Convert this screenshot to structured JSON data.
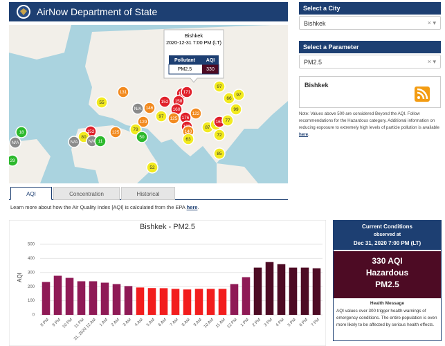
{
  "header": {
    "title": "AirNow Department of State"
  },
  "map": {
    "markers": [
      {
        "label": "97",
        "color": "#f2ea1f"
      },
      {
        "label": "66",
        "color": "#f2ea1f"
      },
      {
        "label": "97",
        "color": "#f2ea1f"
      },
      {
        "label": "99",
        "color": "#f2ea1f"
      },
      {
        "label": "55",
        "color": "#f2ea1f"
      },
      {
        "label": "131",
        "color": "#f28a1f"
      },
      {
        "label": "152",
        "color": "#e0202a"
      },
      {
        "label": "143",
        "color": "#e0202a"
      },
      {
        "label": "171",
        "color": "#e0202a"
      },
      {
        "label": "158",
        "color": "#e0202a"
      },
      {
        "label": "160",
        "color": "#e0202a"
      },
      {
        "label": "N/A",
        "color": "#8a8a8a"
      },
      {
        "label": "146",
        "color": "#f28a1f"
      },
      {
        "label": "97",
        "color": "#f2ea1f"
      },
      {
        "label": "125",
        "color": "#f28a1f"
      },
      {
        "label": "129",
        "color": "#f28a1f"
      },
      {
        "label": "176",
        "color": "#e0202a"
      },
      {
        "label": "122",
        "color": "#f28a1f"
      },
      {
        "label": "157",
        "color": "#e0202a"
      },
      {
        "label": "140",
        "color": "#f28a1f"
      },
      {
        "label": "87",
        "color": "#f2ea1f"
      },
      {
        "label": "76",
        "color": "#f2ea1f"
      },
      {
        "label": "167",
        "color": "#e0202a"
      },
      {
        "label": "77",
        "color": "#f2ea1f"
      },
      {
        "label": "72",
        "color": "#f2ea1f"
      },
      {
        "label": "63",
        "color": "#f2ea1f"
      },
      {
        "label": "85",
        "color": "#f2ea1f"
      },
      {
        "label": "52",
        "color": "#f2ea1f"
      },
      {
        "label": "79",
        "color": "#f2ea1f"
      },
      {
        "label": "50",
        "color": "#2db92d"
      },
      {
        "label": "125",
        "color": "#f28a1f"
      },
      {
        "label": "152",
        "color": "#e0202a"
      },
      {
        "label": "80",
        "color": "#f2ea1f"
      },
      {
        "label": "N/A",
        "color": "#8a8a8a"
      },
      {
        "label": "N/A",
        "color": "#8a8a8a"
      },
      {
        "label": "11",
        "color": "#2db92d"
      },
      {
        "label": "18",
        "color": "#2db92d"
      },
      {
        "label": "N/A",
        "color": "#8a8a8a"
      },
      {
        "label": "29",
        "color": "#2db92d"
      }
    ],
    "popup": {
      "city": "Bishkek",
      "time": "2020-12-31 7:00 PM (LT)",
      "head": [
        "Pollutant",
        "AQI"
      ],
      "row": [
        "PM2.5",
        "330"
      ]
    }
  },
  "sidebar": {
    "city_label": "Select a City",
    "city": "Bishkek",
    "parameter_label": "Select a Parameter",
    "parameter": "PM2.5",
    "feed_title": "Bishkek",
    "note": "Note: Values above 500 are considered Beyond the AQI. Follow recommendations for the Hazardous category. Additional information on reducing exposure to extremely high levels of particle pollution is available ",
    "note_link": "here",
    "note_end": "."
  },
  "tabs": [
    "AQI",
    "Concentration",
    "Historical"
  ],
  "learn_more": {
    "text": "Learn more about how the Air Quality Index [AQI] is calculated from the EPA ",
    "link": "here",
    "end": "."
  },
  "chart_data": {
    "type": "bar",
    "title": "Bishkek - PM2.5",
    "y_label": "AQI",
    "categories": [
      "8 PM",
      "9 PM",
      "10 PM",
      "11 PM",
      "31, 2020 12 AM",
      "1 AM",
      "2 AM",
      "3 AM",
      "4 AM",
      "5 AM",
      "6 AM",
      "7 AM",
      "8 AM",
      "9 AM",
      "10 AM",
      "11 AM",
      "12 PM",
      "1 PM",
      "2 PM",
      "3 PM",
      "4 PM",
      "5 PM",
      "6 PM",
      "7 PM"
    ],
    "values": [
      233,
      277,
      262,
      238,
      238,
      228,
      218,
      204,
      194,
      190,
      189,
      184,
      180,
      184,
      184,
      184,
      218,
      267,
      335,
      374,
      359,
      335,
      335,
      330
    ],
    "colors": [
      "#8f1a56",
      "#8f1a56",
      "#8f1a56",
      "#8f1a56",
      "#8f1a56",
      "#8f1a56",
      "#8f1a56",
      "#8f1a56",
      "#f21d1d",
      "#f21d1d",
      "#f21d1d",
      "#f21d1d",
      "#f21d1d",
      "#f21d1d",
      "#f21d1d",
      "#f21d1d",
      "#8f1a56",
      "#8f1a56",
      "#4d0b24",
      "#4d0b24",
      "#4d0b24",
      "#4d0b24",
      "#4d0b24",
      "#4d0b24"
    ],
    "ylim": [
      0,
      500
    ],
    "yticks": [
      0,
      100,
      200,
      300,
      400,
      500
    ],
    "grid": true
  },
  "current": {
    "title": "Current Conditions",
    "observed": "observed at",
    "time": "Dec 31, 2020 7:00 PM (LT)",
    "aqi": "330 AQI",
    "category": "Hazardous",
    "pollutant": "PM2.5",
    "health_title": "Health Message",
    "health_text": "AQI values over 300 trigger health warnings of emergency conditions. The entire population is even more likely to be affected by serious health effects."
  }
}
